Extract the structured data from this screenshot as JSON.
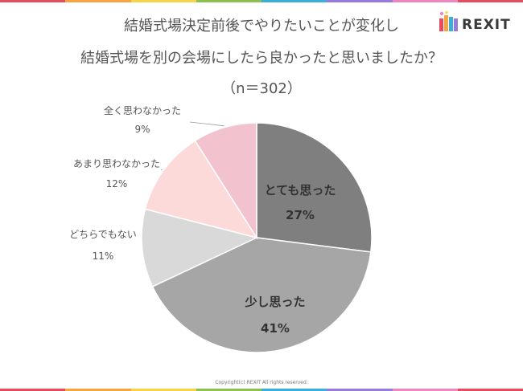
{
  "header": {
    "title_line1": "結婚式場決定前後でやりたいことが変化し",
    "title_line2": "結婚式場を別の会場にしたら良かったと思いましたか？",
    "sample": "（n＝302）"
  },
  "logo": {
    "text": "REXIT",
    "icon": "rexit-logo-icon"
  },
  "footer": {
    "copyright": "Copyright(c) REXIT All rights reserved."
  },
  "colors": {
    "band": [
      "#e84a5f",
      "#f7a541",
      "#f5d547",
      "#8cc152",
      "#3bafda",
      "#967adc",
      "#ec87c0",
      "#e84a5f"
    ]
  },
  "chart_data": {
    "type": "pie",
    "title": "結婚式場決定前後でやりたいことが変化し結婚式場を別の会場にしたら良かったと思いましたか？",
    "slices": [
      {
        "label": "とても思った",
        "value": 27,
        "display": "27%",
        "color": "#7f7f7f"
      },
      {
        "label": "少し思った",
        "value": 41,
        "display": "41%",
        "color": "#a6a6a6"
      },
      {
        "label": "どちらでもない",
        "value": 11,
        "display": "11%",
        "color": "#d9d9d9"
      },
      {
        "label": "あまり思わなかった",
        "value": 12,
        "display": "12%",
        "color": "#fcdada"
      },
      {
        "label": "全く思わなかった",
        "value": 9,
        "display": "9%",
        "color": "#f2c2cf"
      }
    ]
  }
}
